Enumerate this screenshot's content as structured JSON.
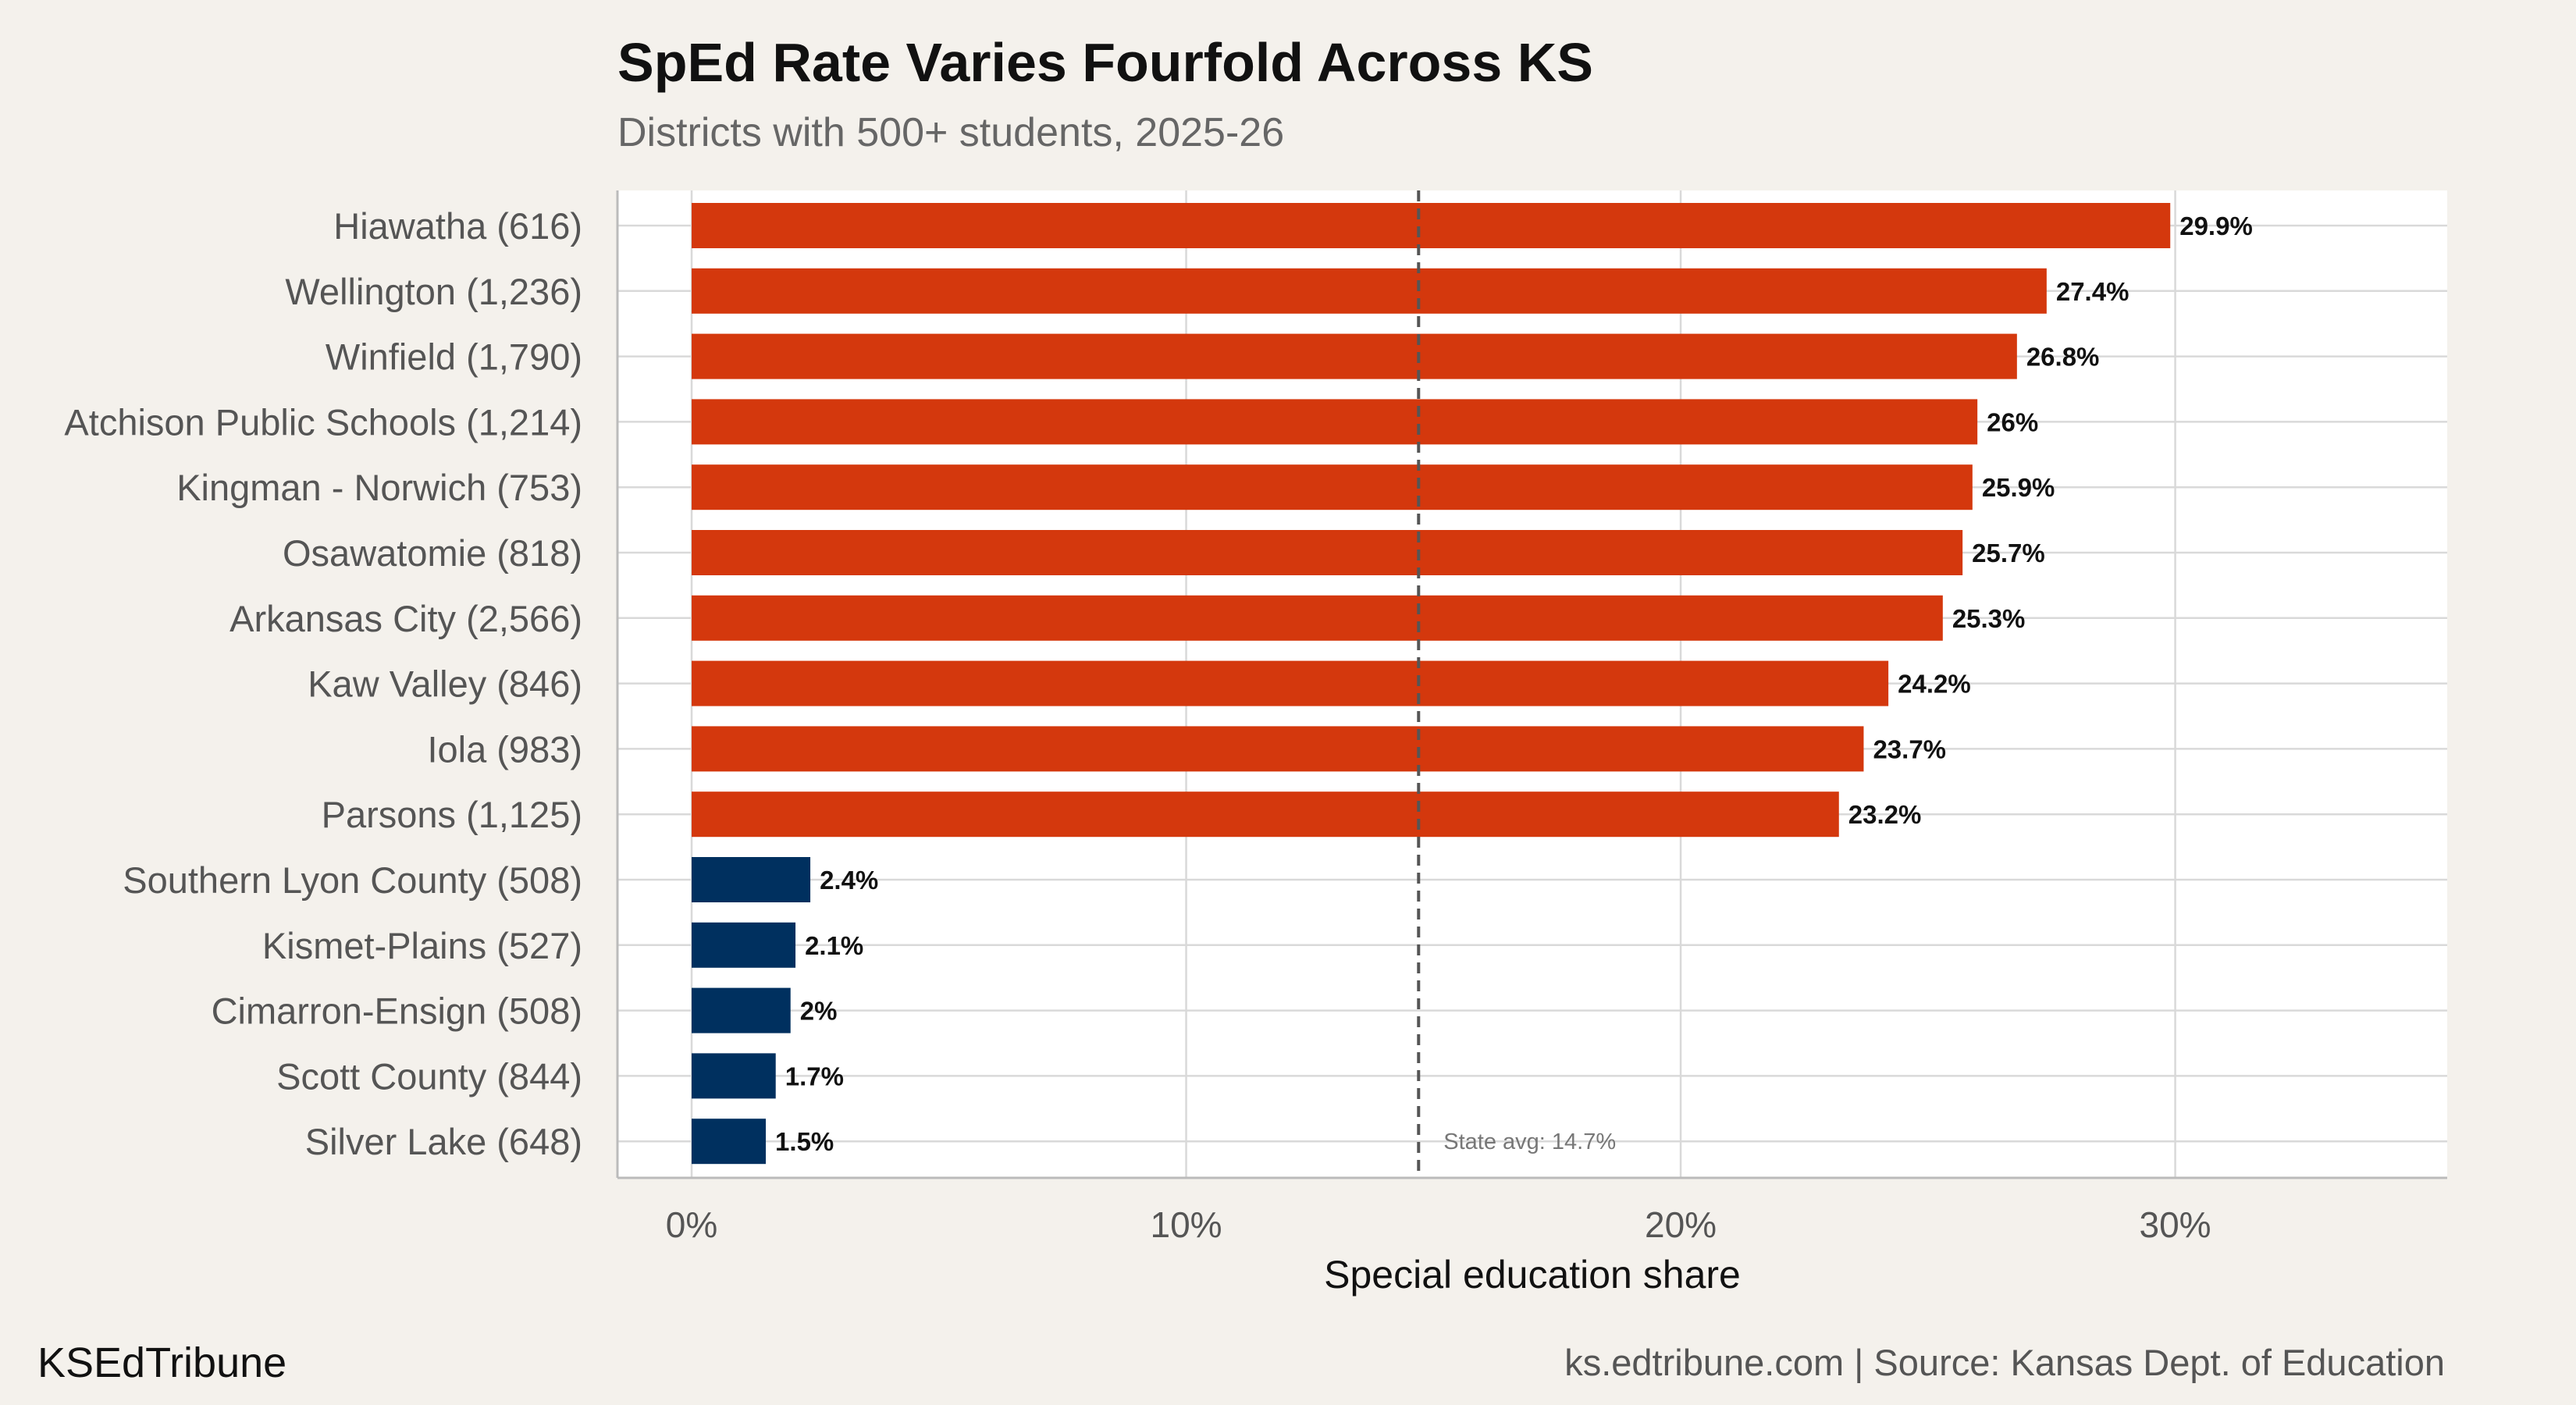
{
  "header": {
    "title": "SpEd Rate Varies Fourfold Across KS",
    "subtitle": "Districts with 500+ students, 2025-26"
  },
  "footer": {
    "brand": "KSEdTribune",
    "source": "ks.edtribune.com | Source: Kansas Dept. of Education"
  },
  "chart_data": {
    "type": "bar",
    "orientation": "horizontal",
    "xlabel": "Special education share",
    "ylabel": "",
    "xlim": [
      -1.5,
      35.5
    ],
    "x_ticks": [
      0,
      10,
      20,
      30
    ],
    "x_tick_labels": [
      "0%",
      "10%",
      "20%",
      "30%"
    ],
    "grid": true,
    "categories": [
      "Hiawatha (616)",
      "Wellington (1,236)",
      "Winfield (1,790)",
      "Atchison Public Schools (1,214)",
      "Kingman - Norwich (753)",
      "Osawatomie (818)",
      "Arkansas City (2,566)",
      "Kaw Valley (846)",
      "Iola (983)",
      "Parsons (1,125)",
      "Southern Lyon County (508)",
      "Kismet-Plains (527)",
      "Cimarron-Ensign (508)",
      "Scott County (844)",
      "Silver Lake (648)"
    ],
    "values": [
      29.9,
      27.4,
      26.8,
      26.0,
      25.9,
      25.7,
      25.3,
      24.2,
      23.7,
      23.2,
      2.4,
      2.1,
      2.0,
      1.7,
      1.5
    ],
    "value_labels": [
      "29.9%",
      "27.4%",
      "26.8%",
      "26%",
      "25.9%",
      "25.7%",
      "25.3%",
      "24.2%",
      "23.7%",
      "23.2%",
      "2.4%",
      "2.1%",
      "2%",
      "1.7%",
      "1.5%"
    ],
    "groups": [
      "high",
      "high",
      "high",
      "high",
      "high",
      "high",
      "high",
      "high",
      "high",
      "high",
      "low",
      "low",
      "low",
      "low",
      "low"
    ],
    "colors": {
      "high": "#d4380d",
      "low": "#00305f"
    },
    "reference_line": {
      "value": 14.7,
      "label": "State avg: 14.7%"
    }
  }
}
